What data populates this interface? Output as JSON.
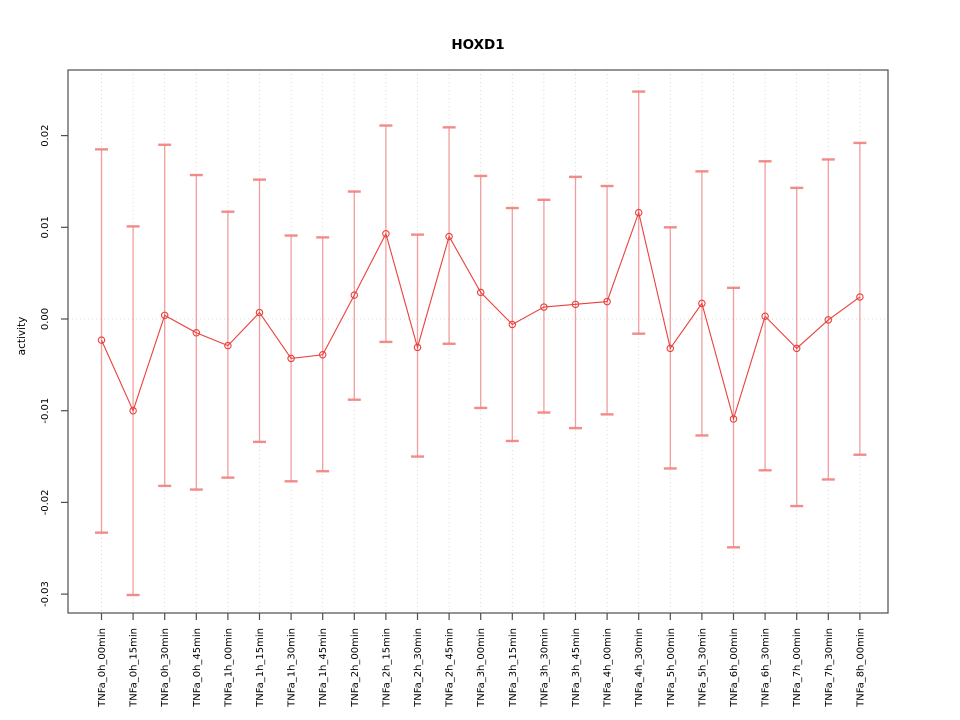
{
  "title": "HOXD1",
  "chart_data": {
    "type": "line",
    "title": "HOXD1",
    "xlabel": "",
    "ylabel": "activity",
    "legend": "none",
    "grid": "dotted vertical gridline at each category; dotted horizontal line at y=0",
    "ylim": [
      -0.0321,
      0.0272
    ],
    "yticks": [
      0.02,
      0.01,
      0.0,
      -0.01,
      -0.02,
      -0.03
    ],
    "ytick_labels": [
      "0.02",
      "0.01",
      "0.00",
      "-0.01",
      "-0.02",
      "-0.03"
    ],
    "series_name": "activity",
    "marker": "open-circle",
    "error_bars": true,
    "categories": [
      "TNFa_0h_00min",
      "TNFa_0h_15min",
      "TNFa_0h_30min",
      "TNFa_0h_45min",
      "TNFa_1h_00min",
      "TNFa_1h_15min",
      "TNFa_1h_30min",
      "TNFa_1h_45min",
      "TNFa_2h_00min",
      "TNFa_2h_15min",
      "TNFa_2h_30min",
      "TNFa_2h_45min",
      "TNFa_3h_00min",
      "TNFa_3h_15min",
      "TNFa_3h_30min",
      "TNFa_3h_45min",
      "TNFa_4h_00min",
      "TNFa_4h_30min",
      "TNFa_5h_00min",
      "TNFa_5h_30min",
      "TNFa_6h_00min",
      "TNFa_6h_30min",
      "TNFa_7h_00min",
      "TNFa_7h_30min",
      "TNFa_8h_00min"
    ],
    "values": [
      -0.0023,
      -0.01,
      0.0004,
      -0.0015,
      -0.0029,
      0.0007,
      -0.0043,
      -0.0039,
      0.0026,
      0.0093,
      -0.0031,
      0.009,
      0.0029,
      -0.0006,
      0.0013,
      0.0016,
      0.0019,
      0.0116,
      -0.0032,
      0.0017,
      -0.0109,
      0.0003,
      -0.0032,
      -0.0001,
      0.0024
    ],
    "upper": [
      0.0185,
      0.0101,
      0.019,
      0.0157,
      0.0117,
      0.0152,
      0.0091,
      0.0089,
      0.0139,
      0.0211,
      0.0092,
      0.0209,
      0.0156,
      0.0121,
      0.013,
      0.0155,
      0.0145,
      0.0248,
      0.01,
      0.0161,
      0.0034,
      0.0172,
      0.0143,
      0.0174,
      0.0192
    ],
    "lower": [
      -0.0233,
      -0.0301,
      -0.0182,
      -0.0186,
      -0.0173,
      -0.0134,
      -0.0177,
      -0.0166,
      -0.0088,
      -0.0025,
      -0.015,
      -0.0027,
      -0.0097,
      -0.0133,
      -0.0102,
      -0.0119,
      -0.0104,
      -0.0016,
      -0.0163,
      -0.0127,
      -0.0249,
      -0.0165,
      -0.0204,
      -0.0175,
      -0.0148
    ],
    "colors": {
      "point": "#e9413d",
      "line": "#e9413d",
      "error_bar": "#f0807d",
      "cap": "#f0807d",
      "grid": "#d9d9d9",
      "axis": "#4d4d4d",
      "text": "#000000"
    }
  }
}
